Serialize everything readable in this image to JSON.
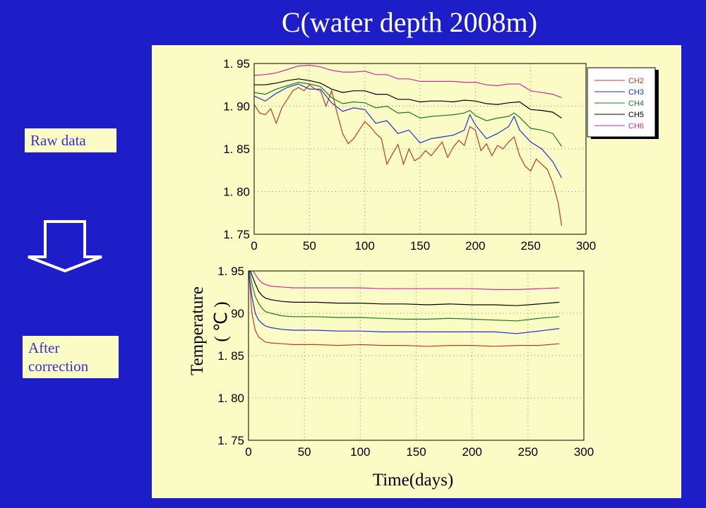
{
  "slide": {
    "title": "C(water depth 2008m)",
    "raw_label": "Raw data",
    "corrected_label_line1": "After",
    "corrected_label_line2": "correction",
    "arrow_icon": "down-arrow-icon",
    "background_color": "#1d1ec8",
    "panel_color": "#fbfbc6"
  },
  "chart_data": [
    {
      "type": "line",
      "panel": "raw",
      "xlim": [
        0,
        300
      ],
      "ylim": [
        1.75,
        1.95
      ],
      "xticks": [
        "0",
        "50",
        "100",
        "150",
        "200",
        "250",
        "300"
      ],
      "yticks": [
        "1. 95",
        "1. 90",
        "1. 85",
        "1. 80",
        "1. 75"
      ],
      "ytick_values": [
        1.95,
        1.9,
        1.85,
        1.8,
        1.75
      ],
      "grid": "dotted",
      "legend_placement": "right",
      "series": [
        {
          "name": "CH2",
          "color": "#c0392b",
          "x": [
            0,
            5,
            10,
            15,
            20,
            25,
            30,
            35,
            40,
            45,
            50,
            55,
            60,
            65,
            70,
            75,
            80,
            85,
            90,
            95,
            100,
            105,
            110,
            115,
            120,
            125,
            130,
            135,
            140,
            145,
            150,
            155,
            160,
            165,
            170,
            175,
            180,
            185,
            190,
            195,
            200,
            205,
            210,
            215,
            220,
            225,
            230,
            235,
            240,
            245,
            250,
            255,
            260,
            265,
            270,
            275,
            278
          ],
          "y": [
            1.902,
            1.892,
            1.89,
            1.897,
            1.88,
            1.898,
            1.908,
            1.918,
            1.922,
            1.918,
            1.925,
            1.92,
            1.918,
            1.9,
            1.918,
            1.892,
            1.868,
            1.856,
            1.862,
            1.872,
            1.882,
            1.876,
            1.868,
            1.862,
            1.832,
            1.844,
            1.855,
            1.832,
            1.85,
            1.836,
            1.84,
            1.848,
            1.842,
            1.85,
            1.858,
            1.84,
            1.852,
            1.86,
            1.854,
            1.876,
            1.872,
            1.848,
            1.856,
            1.842,
            1.854,
            1.85,
            1.858,
            1.864,
            1.842,
            1.83,
            1.824,
            1.838,
            1.832,
            1.826,
            1.81,
            1.786,
            1.76
          ]
        },
        {
          "name": "CH3",
          "color": "#1f2fd1",
          "x": [
            0,
            10,
            20,
            30,
            40,
            50,
            60,
            70,
            80,
            90,
            100,
            110,
            120,
            130,
            140,
            150,
            160,
            170,
            180,
            190,
            195,
            200,
            210,
            220,
            230,
            235,
            240,
            250,
            260,
            270,
            278
          ],
          "y": [
            1.912,
            1.906,
            1.915,
            1.922,
            1.926,
            1.92,
            1.92,
            1.904,
            1.894,
            1.898,
            1.896,
            1.88,
            1.883,
            1.868,
            1.872,
            1.857,
            1.862,
            1.864,
            1.866,
            1.872,
            1.89,
            1.878,
            1.862,
            1.868,
            1.876,
            1.888,
            1.872,
            1.858,
            1.85,
            1.835,
            1.816
          ]
        },
        {
          "name": "CH4",
          "color": "#1f7a1f",
          "x": [
            0,
            10,
            20,
            30,
            40,
            50,
            60,
            70,
            80,
            90,
            100,
            110,
            120,
            130,
            140,
            150,
            160,
            170,
            180,
            190,
            195,
            200,
            210,
            220,
            230,
            235,
            240,
            250,
            260,
            270,
            278
          ],
          "y": [
            1.916,
            1.914,
            1.92,
            1.924,
            1.928,
            1.926,
            1.923,
            1.91,
            1.903,
            1.905,
            1.904,
            1.898,
            1.9,
            1.892,
            1.893,
            1.886,
            1.888,
            1.889,
            1.89,
            1.892,
            1.895,
            1.889,
            1.883,
            1.886,
            1.888,
            1.892,
            1.887,
            1.874,
            1.872,
            1.868,
            1.853
          ]
        },
        {
          "name": "CH5",
          "color": "#000000",
          "x": [
            0,
            10,
            20,
            30,
            40,
            50,
            60,
            70,
            80,
            90,
            100,
            110,
            120,
            130,
            140,
            150,
            160,
            170,
            180,
            190,
            200,
            210,
            220,
            230,
            240,
            250,
            260,
            270,
            278
          ],
          "y": [
            1.925,
            1.925,
            1.927,
            1.93,
            1.932,
            1.93,
            1.927,
            1.92,
            1.916,
            1.918,
            1.918,
            1.914,
            1.914,
            1.908,
            1.908,
            1.905,
            1.906,
            1.906,
            1.905,
            1.907,
            1.906,
            1.903,
            1.902,
            1.904,
            1.905,
            1.896,
            1.895,
            1.893,
            1.886
          ]
        },
        {
          "name": "CH6",
          "color": "#cc2d9e",
          "x": [
            0,
            10,
            20,
            30,
            40,
            50,
            60,
            70,
            80,
            90,
            100,
            110,
            120,
            130,
            140,
            150,
            160,
            170,
            180,
            190,
            200,
            210,
            220,
            230,
            240,
            250,
            260,
            270,
            278
          ],
          "y": [
            1.936,
            1.937,
            1.939,
            1.943,
            1.947,
            1.948,
            1.946,
            1.942,
            1.94,
            1.94,
            1.941,
            1.937,
            1.937,
            1.932,
            1.932,
            1.929,
            1.929,
            1.929,
            1.929,
            1.928,
            1.928,
            1.925,
            1.924,
            1.926,
            1.926,
            1.918,
            1.916,
            1.914,
            1.91
          ]
        }
      ]
    },
    {
      "type": "line",
      "panel": "corrected",
      "xlim": [
        0,
        300
      ],
      "ylim": [
        1.75,
        1.95
      ],
      "xticks": [
        "0",
        "50",
        "100",
        "150",
        "200",
        "250",
        "300"
      ],
      "yticks": [
        "1. 95",
        "1. 90",
        "1. 85",
        "1. 80",
        "1. 75"
      ],
      "ytick_labels_shown": [
        ". 90",
        "1. 85",
        "1. 80",
        "1. 75"
      ],
      "ytick_values": [
        1.95,
        1.9,
        1.85,
        1.8,
        1.75
      ],
      "grid": "dotted",
      "series": [
        {
          "name": "CH2",
          "color": "#c0392b",
          "x": [
            0,
            3,
            6,
            9,
            12,
            15,
            20,
            30,
            40,
            60,
            80,
            100,
            120,
            140,
            160,
            180,
            200,
            220,
            240,
            260,
            278
          ],
          "y": [
            1.955,
            1.9,
            1.88,
            1.872,
            1.869,
            1.866,
            1.865,
            1.864,
            1.863,
            1.863,
            1.862,
            1.863,
            1.862,
            1.862,
            1.861,
            1.862,
            1.862,
            1.861,
            1.862,
            1.862,
            1.864
          ]
        },
        {
          "name": "CH3",
          "color": "#1f2fd1",
          "x": [
            0,
            3,
            6,
            9,
            12,
            15,
            20,
            30,
            40,
            60,
            80,
            100,
            120,
            140,
            160,
            180,
            200,
            220,
            240,
            260,
            278
          ],
          "y": [
            1.95,
            1.92,
            1.9,
            1.892,
            1.888,
            1.885,
            1.883,
            1.881,
            1.88,
            1.88,
            1.879,
            1.879,
            1.878,
            1.878,
            1.878,
            1.878,
            1.878,
            1.878,
            1.876,
            1.879,
            1.882
          ]
        },
        {
          "name": "CH4",
          "color": "#1f7a1f",
          "x": [
            0,
            3,
            6,
            9,
            12,
            15,
            20,
            30,
            40,
            60,
            80,
            100,
            120,
            140,
            160,
            180,
            200,
            220,
            240,
            260,
            278
          ],
          "y": [
            1.955,
            1.935,
            1.92,
            1.912,
            1.906,
            1.902,
            1.9,
            1.897,
            1.896,
            1.896,
            1.895,
            1.895,
            1.894,
            1.893,
            1.893,
            1.894,
            1.893,
            1.892,
            1.891,
            1.894,
            1.896
          ]
        },
        {
          "name": "CH5",
          "color": "#000000",
          "x": [
            0,
            3,
            6,
            9,
            12,
            15,
            20,
            30,
            40,
            60,
            80,
            100,
            120,
            140,
            160,
            180,
            200,
            220,
            240,
            260,
            278
          ],
          "y": [
            1.955,
            1.945,
            1.935,
            1.926,
            1.921,
            1.918,
            1.916,
            1.914,
            1.913,
            1.913,
            1.912,
            1.912,
            1.911,
            1.911,
            1.91,
            1.911,
            1.91,
            1.91,
            1.909,
            1.911,
            1.913
          ]
        },
        {
          "name": "CH6",
          "color": "#cc2d9e",
          "x": [
            0,
            3,
            6,
            9,
            12,
            15,
            20,
            30,
            40,
            60,
            80,
            100,
            120,
            140,
            160,
            180,
            200,
            220,
            240,
            260,
            278
          ],
          "y": [
            1.955,
            1.952,
            1.946,
            1.94,
            1.936,
            1.934,
            1.932,
            1.931,
            1.93,
            1.93,
            1.93,
            1.93,
            1.929,
            1.929,
            1.929,
            1.929,
            1.929,
            1.928,
            1.928,
            1.929,
            1.93
          ]
        }
      ]
    }
  ],
  "axes_text": {
    "ylabel_line1": "Temperature",
    "ylabel_line2": "( ℃ )",
    "xlabel": "Time(days)"
  }
}
